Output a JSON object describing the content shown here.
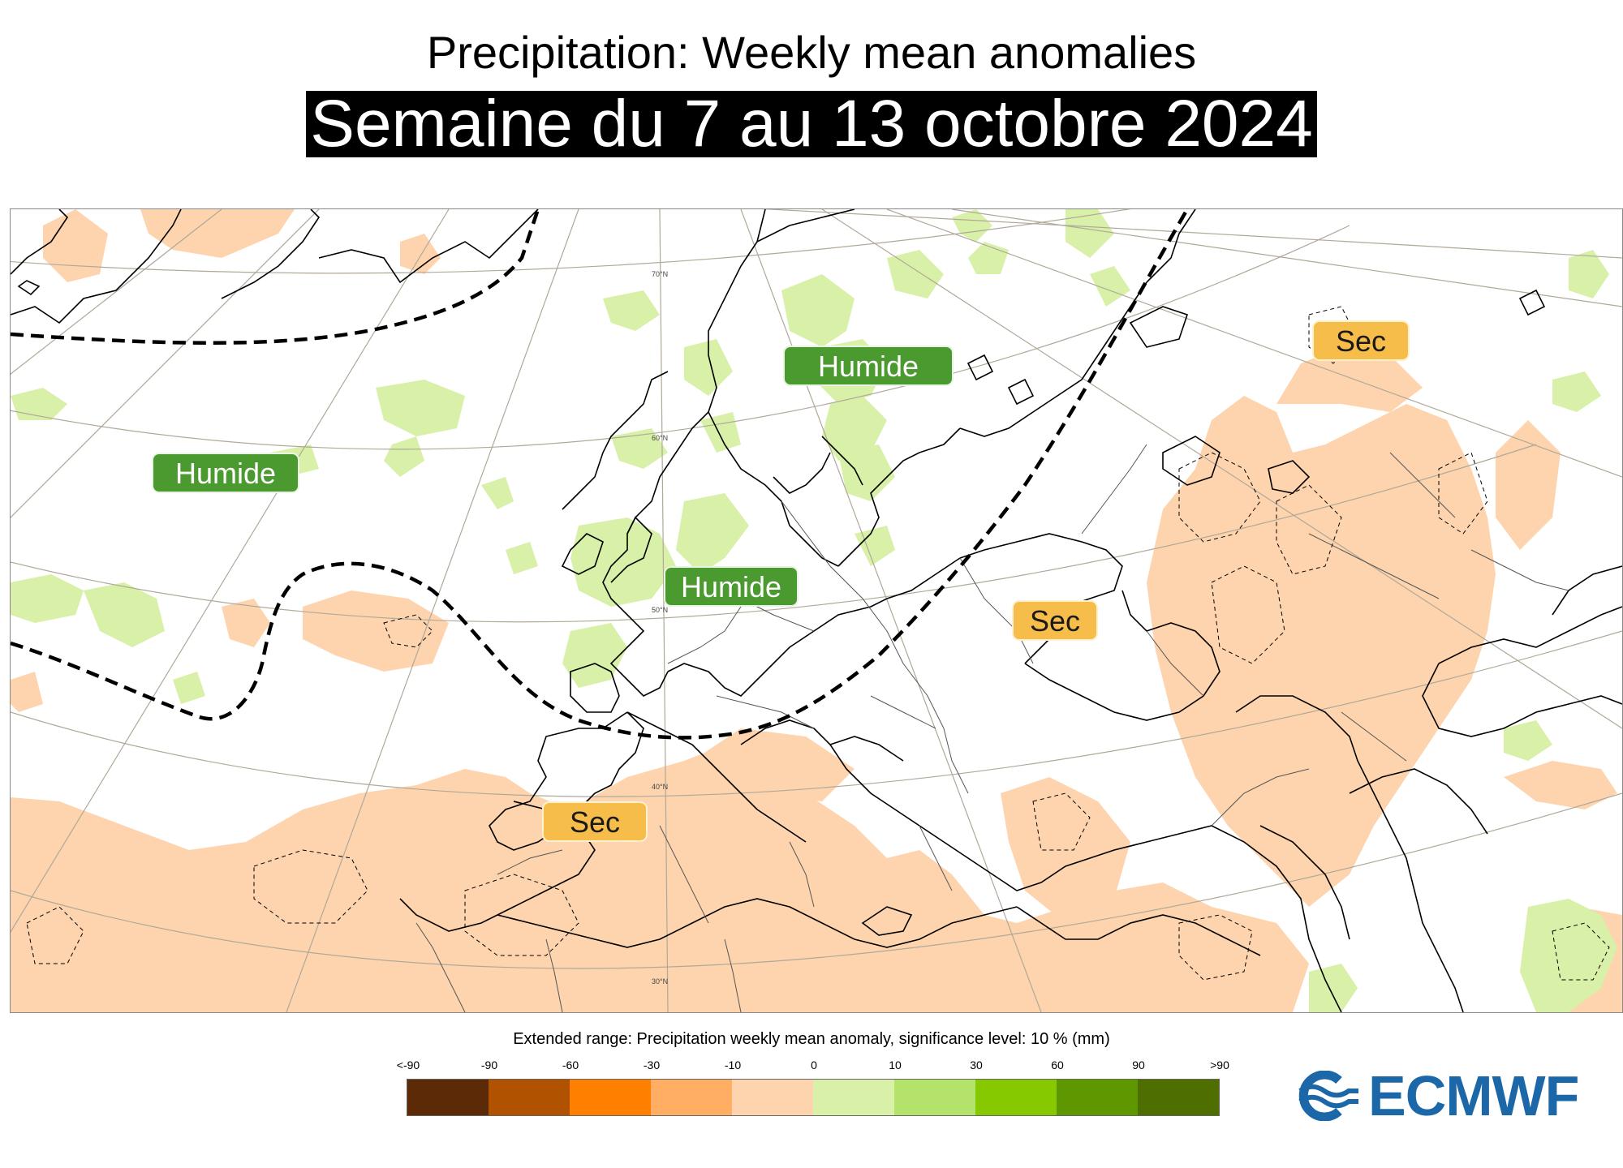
{
  "header": {
    "title": "Precipitation: Weekly mean anomalies",
    "subtitle": "Semaine du 7 au 13 octobre 2024"
  },
  "map": {
    "latitude_labels": [
      "70°N",
      "60°N",
      "50°N",
      "40°N",
      "30°N"
    ],
    "badges": [
      {
        "id": "humide-atlantic",
        "label": "Humide",
        "kind": "wet"
      },
      {
        "id": "humide-scandinavia",
        "label": "Humide",
        "kind": "wet"
      },
      {
        "id": "humide-west-europe",
        "label": "Humide",
        "kind": "wet"
      },
      {
        "id": "sec-russia",
        "label": "Sec",
        "kind": "dry"
      },
      {
        "id": "sec-black-sea",
        "label": "Sec",
        "kind": "dry"
      },
      {
        "id": "sec-iberia",
        "label": "Sec",
        "kind": "dry"
      }
    ],
    "colors": {
      "dry_anomaly": "#fdd4ae",
      "wet_anomaly": "#d8f0a8",
      "coastline": "#000000",
      "borders": "#555555",
      "graticule": "#b0a898"
    }
  },
  "legend": {
    "title": "Extended range: Precipitation weekly mean anomaly, significance level: 10 % (mm)",
    "ticks": [
      "<-90",
      "-90",
      "-60",
      "-30",
      "-10",
      "0",
      "10",
      "30",
      "60",
      "90",
      ">90"
    ],
    "colors": [
      "#5c2a06",
      "#b05200",
      "#ff8000",
      "#ffae63",
      "#fdd4ae",
      "#d8f0a8",
      "#b4e36c",
      "#86c900",
      "#5f9700",
      "#4e6e00"
    ]
  },
  "logo": {
    "text": "ECMWF",
    "color": "#1b67a8"
  }
}
